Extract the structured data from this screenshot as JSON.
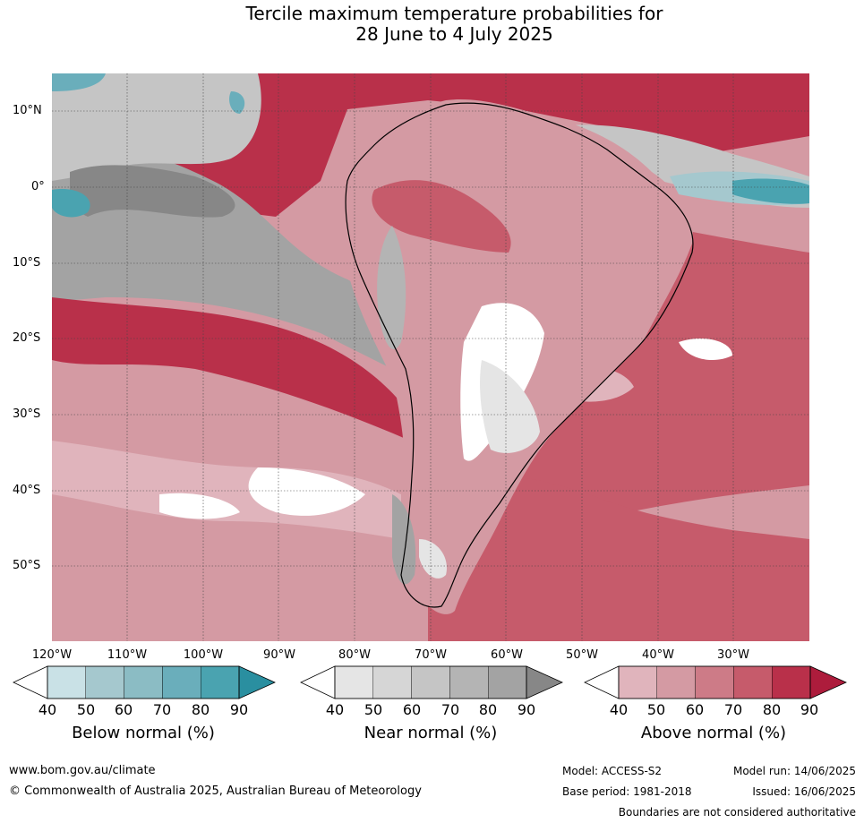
{
  "title": {
    "line1": "Tercile maximum temperature probabilities for",
    "line2": "28 June to 4 July 2025"
  },
  "lat_labels": [
    "10°N",
    "0°",
    "10°S",
    "20°S",
    "30°S",
    "40°S",
    "50°S"
  ],
  "lon_labels": [
    "120°W",
    "110°W",
    "100°W",
    "90°W",
    "80°W",
    "70°W",
    "60°W",
    "50°W",
    "40°W",
    "30°W"
  ],
  "colorbars": [
    {
      "title": "Below normal (%)",
      "ticks": [
        "40",
        "50",
        "60",
        "70",
        "80",
        "90"
      ],
      "colors": [
        "#ffffff",
        "#c9e1e6",
        "#a5c8ce",
        "#8bbcc4",
        "#6aaebb",
        "#4aa3b0",
        "#2a8fa0"
      ]
    },
    {
      "title": "Near normal (%)",
      "ticks": [
        "40",
        "50",
        "60",
        "70",
        "80",
        "90"
      ],
      "colors": [
        "#ffffff",
        "#e5e5e5",
        "#d6d6d6",
        "#c5c5c5",
        "#b4b4b4",
        "#a3a3a3",
        "#878787"
      ]
    },
    {
      "title": "Above normal (%)",
      "ticks": [
        "40",
        "50",
        "60",
        "70",
        "80",
        "90"
      ],
      "colors": [
        "#ffffff",
        "#e0b4bc",
        "#d49aa3",
        "#cd7b87",
        "#c65b6b",
        "#b9304a",
        "#ad1c3c"
      ]
    }
  ],
  "footer": {
    "website": "www.bom.gov.au/climate",
    "copyright": "© Commonwealth of Australia 2025, Australian Bureau of Meteorology",
    "model": "Model: ACCESS-S2",
    "base_period": "Base period: 1981-2018",
    "model_run": "Model run: 14/06/2025",
    "issued": "Issued: 16/06/2025",
    "disclaimer": "Boundaries are not considered authoritative"
  }
}
